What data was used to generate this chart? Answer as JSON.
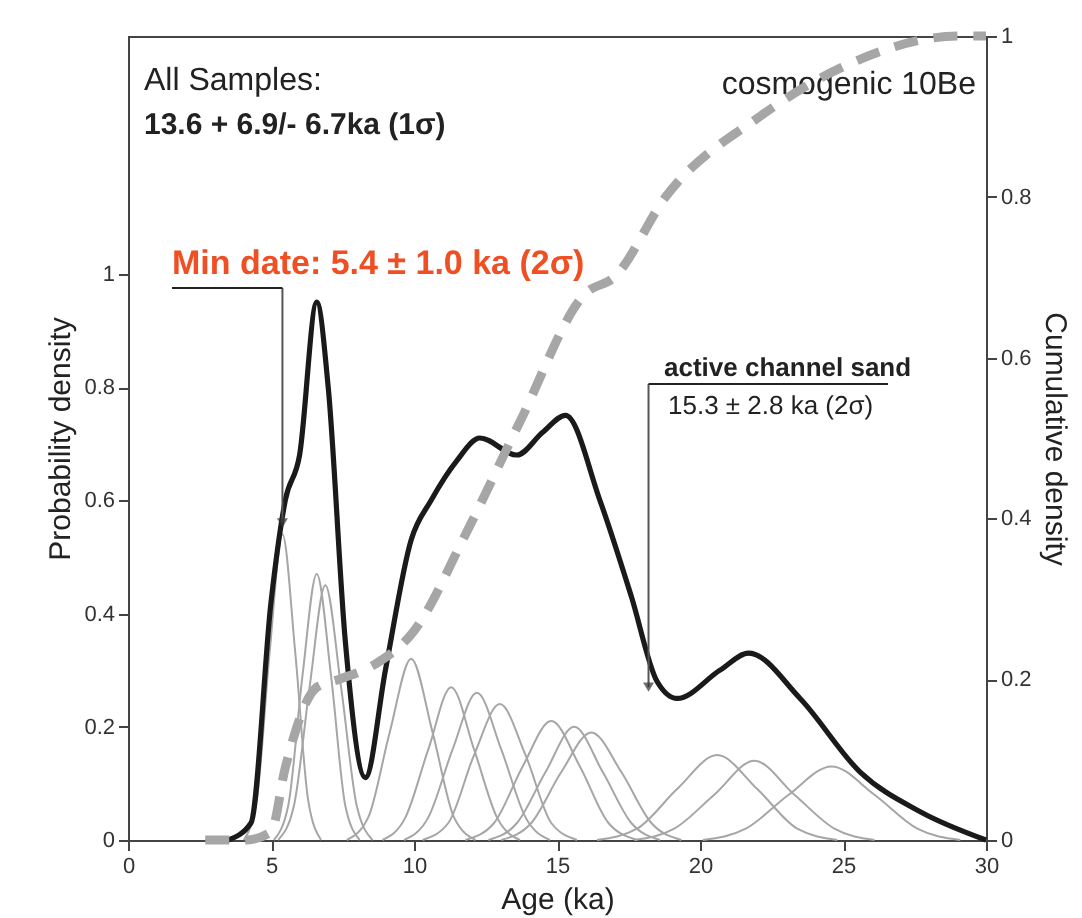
{
  "chart_data": {
    "type": "line",
    "xlabel": "Age (ka)",
    "ylabel": "Probability density",
    "y2label": "Cumulative density",
    "xlim": [
      0,
      30
    ],
    "xticks": [
      0,
      5,
      10,
      15,
      20,
      25,
      30
    ],
    "ylim": [
      0,
      1.42
    ],
    "yticks": [
      0,
      0.2,
      0.4,
      0.6,
      0.8,
      1
    ],
    "y2lim": [
      0,
      1
    ],
    "y2ticks": [
      0,
      0.2,
      0.4,
      0.6,
      0.8,
      1
    ],
    "annotations": [
      "All Samples:",
      "13.6 + 6.9/- 6.7ka (1σ)",
      {
        "text": "Min date: 5.4 ± 1.0 ka (2σ)",
        "x": 5.4,
        "y": 0.56
      },
      {
        "text": "active channel sand",
        "x": 18.2,
        "y": 0.27
      },
      "15.3 ± 2.8 ka (2σ)",
      "cosmogenic 10Be"
    ],
    "series": [
      {
        "color": "#a6a6a6",
        "x": [
          4.05,
          4.5,
          4.95,
          5.4,
          5.85,
          6.3,
          6.75
        ],
        "values": [
          0,
          0.07,
          0.33,
          0.54,
          0.33,
          0.07,
          0
        ]
      },
      {
        "color": "#a6a6a6",
        "x": [
          5.1,
          5.6,
          6.1,
          6.6,
          7.1,
          7.6,
          8.1
        ],
        "values": [
          0,
          0.06,
          0.29,
          0.47,
          0.29,
          0.06,
          0
        ]
      },
      {
        "color": "#a6a6a6",
        "x": [
          5.25,
          5.8,
          6.35,
          6.9,
          7.45,
          8.0,
          8.55
        ],
        "values": [
          0,
          0.06,
          0.27,
          0.45,
          0.27,
          0.06,
          0
        ]
      },
      {
        "color": "#a6a6a6",
        "x": [
          7.65,
          8.4,
          9.15,
          9.9,
          10.65,
          11.4,
          12.15
        ],
        "values": [
          0,
          0.04,
          0.19,
          0.32,
          0.19,
          0.04,
          0
        ]
      },
      {
        "color": "#a6a6a6",
        "x": [
          8.9,
          9.7,
          10.5,
          11.3,
          12.1,
          12.9,
          13.7
        ],
        "values": [
          0,
          0.04,
          0.16,
          0.27,
          0.16,
          0.04,
          0
        ]
      },
      {
        "color": "#a6a6a6",
        "x": [
          9.65,
          10.5,
          11.35,
          12.2,
          13.05,
          13.9,
          14.75
        ],
        "values": [
          0,
          0.04,
          0.16,
          0.26,
          0.16,
          0.04,
          0
        ]
      },
      {
        "color": "#a6a6a6",
        "x": [
          10.3,
          11.2,
          12.1,
          13.0,
          13.9,
          14.8,
          15.7
        ],
        "values": [
          0,
          0.03,
          0.15,
          0.24,
          0.15,
          0.03,
          0
        ]
      },
      {
        "color": "#a6a6a6",
        "x": [
          11.8,
          12.8,
          13.8,
          14.8,
          15.8,
          16.8,
          17.8
        ],
        "values": [
          0,
          0.03,
          0.13,
          0.21,
          0.13,
          0.03,
          0
        ]
      },
      {
        "color": "#a6a6a6",
        "x": [
          12.6,
          13.6,
          14.6,
          15.6,
          16.6,
          17.6,
          18.6
        ],
        "values": [
          0,
          0.03,
          0.12,
          0.2,
          0.12,
          0.03,
          0
        ]
      },
      {
        "color": "#a6a6a6",
        "x": [
          13.05,
          14.1,
          15.15,
          16.2,
          17.25,
          18.3,
          19.35
        ],
        "values": [
          0,
          0.03,
          0.12,
          0.19,
          0.12,
          0.03,
          0
        ]
      },
      {
        "color": "#a6a6a6",
        "x": [
          16.4,
          17.8,
          19.2,
          20.6,
          22.0,
          23.4,
          24.8
        ],
        "values": [
          0,
          0.02,
          0.09,
          0.15,
          0.09,
          0.02,
          0
        ]
      },
      {
        "color": "#a6a6a6",
        "x": [
          17.7,
          19.1,
          20.5,
          21.9,
          23.3,
          24.7,
          26.1
        ],
        "values": [
          0,
          0.02,
          0.08,
          0.14,
          0.08,
          0.02,
          0
        ]
      },
      {
        "color": "#a6a6a6",
        "x": [
          20.1,
          21.6,
          23.1,
          24.6,
          26.1,
          27.6,
          29.1
        ],
        "values": [
          0,
          0.02,
          0.08,
          0.13,
          0.08,
          0.02,
          0
        ]
      },
      {
        "color": "#a6a6a6",
        "axis": "y2",
        "line_style": "dashed",
        "x": [
          2.7,
          4.1,
          5.0,
          5.5,
          6.6,
          7.4,
          8.7,
          10.0,
          11.8,
          13.7,
          16.0,
          17.0,
          18.8,
          22.1,
          24.9,
          29.1,
          30
        ],
        "values": [
          0,
          0,
          0.01,
          0.09,
          0.19,
          0.2,
          0.22,
          0.26,
          0.38,
          0.52,
          0.68,
          0.7,
          0.8,
          0.9,
          0.96,
          1.0,
          1.0
        ]
      },
      {
        "color": "#1a1a1a",
        "x": [
          3.5,
          4.3,
          5.0,
          5.5,
          6.0,
          6.6,
          7.0,
          7.6,
          8.3,
          9.0,
          9.9,
          10.6,
          11.5,
          12.3,
          13.6,
          14.5,
          15.3,
          16.5,
          17.6,
          18.5,
          19.2,
          20.7,
          21.7,
          23.5,
          25.6,
          27.7,
          30
        ],
        "values": [
          0,
          0.03,
          0.42,
          0.6,
          0.68,
          0.95,
          0.8,
          0.35,
          0.11,
          0.3,
          0.53,
          0.6,
          0.67,
          0.71,
          0.68,
          0.72,
          0.75,
          0.6,
          0.43,
          0.28,
          0.25,
          0.3,
          0.33,
          0.25,
          0.12,
          0.05,
          0
        ]
      }
    ]
  }
}
